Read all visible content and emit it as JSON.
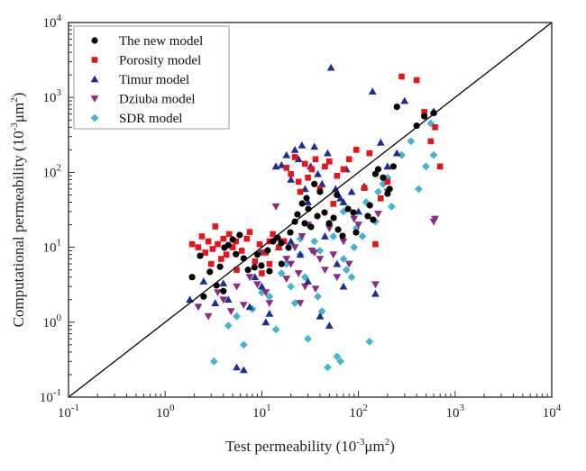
{
  "chart_data": {
    "type": "scatter",
    "title": "",
    "xlabel": "Test permeability (10⁻³μm²)",
    "ylabel": "Computational permeability (10⁻³μm²)",
    "xlabel_parts": {
      "pre": "Test permeability (10",
      "sup1": "-3",
      "mid": "μm",
      "sup2": "2",
      "post": ")"
    },
    "ylabel_parts": {
      "pre": "Computational permeability (10",
      "sup1": "-3",
      "mid": "μm",
      "sup2": "2",
      "post": ")"
    },
    "xscale": "log",
    "yscale": "log",
    "xlim": [
      0.1,
      10000
    ],
    "ylim": [
      0.1,
      10000
    ],
    "x_ticks": [
      {
        "value": 0.1,
        "base": "10",
        "exp": "-1"
      },
      {
        "value": 1,
        "base": "10",
        "exp": "0"
      },
      {
        "value": 10,
        "base": "10",
        "exp": "1"
      },
      {
        "value": 100,
        "base": "10",
        "exp": "2"
      },
      {
        "value": 1000,
        "base": "10",
        "exp": "3"
      },
      {
        "value": 10000,
        "base": "10",
        "exp": "4"
      }
    ],
    "y_ticks": [
      {
        "value": 0.1,
        "base": "10",
        "exp": "-1"
      },
      {
        "value": 1,
        "base": "10",
        "exp": "0"
      },
      {
        "value": 10,
        "base": "10",
        "exp": "1"
      },
      {
        "value": 100,
        "base": "10",
        "exp": "2"
      },
      {
        "value": 1000,
        "base": "10",
        "exp": "3"
      },
      {
        "value": 10000,
        "base": "10",
        "exp": "4"
      }
    ],
    "grid": false,
    "legend_position": "top-left",
    "reference_line": {
      "name": "y = x",
      "color": "#000000"
    },
    "series": [
      {
        "name": "The new model",
        "marker": "circle",
        "color": "#000000",
        "points": [
          [
            1.9,
            4.0
          ],
          [
            2.3,
            7.7
          ],
          [
            2.9,
            4.7
          ],
          [
            3.7,
            5.5
          ],
          [
            4.1,
            9.9
          ],
          [
            4.5,
            10.7
          ],
          [
            5.0,
            12.7
          ],
          [
            5.9,
            14.6
          ],
          [
            5.4,
            8.1
          ],
          [
            6.5,
            7.1
          ],
          [
            7.2,
            5.0
          ],
          [
            8.4,
            5.4
          ],
          [
            9.9,
            5.7
          ],
          [
            11.5,
            9.1
          ],
          [
            13.1,
            12.0
          ],
          [
            14.6,
            13.4
          ],
          [
            15.9,
            11.4
          ],
          [
            18.9,
            9.9
          ],
          [
            19.7,
            15.8
          ],
          [
            23.4,
            27.5
          ],
          [
            26.1,
            38.4
          ],
          [
            29.0,
            45.3
          ],
          [
            30.3,
            32.5
          ],
          [
            27.8,
            20.9
          ],
          [
            32.3,
            18.7
          ],
          [
            37.6,
            26.1
          ],
          [
            44.6,
            29.1
          ],
          [
            49.7,
            20.9
          ],
          [
            55.3,
            24.7
          ],
          [
            61.6,
            17.2
          ],
          [
            68.5,
            14.2
          ],
          [
            78.0,
            32.5
          ],
          [
            88.7,
            29.1
          ],
          [
            94.6,
            15.8
          ],
          [
            125,
            26.1
          ],
          [
            131,
            36.3
          ],
          [
            142,
            23.3
          ],
          [
            160,
            110
          ],
          [
            180,
            85
          ],
          [
            210,
            60
          ],
          [
            250,
            750
          ],
          [
            230,
            120
          ],
          [
            400,
            420
          ],
          [
            480,
            560
          ],
          [
            600,
            620
          ],
          [
            2.5,
            2.2
          ],
          [
            3.4,
            3.1
          ],
          [
            4.0,
            2.6
          ],
          [
            16,
            6
          ],
          [
            22,
            22
          ],
          [
            35,
            70
          ],
          [
            40,
            55
          ],
          [
            60,
            50
          ],
          [
            150,
            95
          ],
          [
            200,
            52
          ],
          [
            9,
            8
          ],
          [
            12,
            4.8
          ]
        ]
      },
      {
        "name": "Porosity model",
        "marker": "square",
        "color": "#e8141c",
        "points": [
          [
            1.9,
            11
          ],
          [
            2.2,
            10
          ],
          [
            2.4,
            14
          ],
          [
            2.6,
            8.5
          ],
          [
            2.8,
            12
          ],
          [
            3.1,
            9.5
          ],
          [
            3.3,
            19
          ],
          [
            3.5,
            11
          ],
          [
            3.8,
            7
          ],
          [
            4.0,
            13
          ],
          [
            4.3,
            8
          ],
          [
            4.6,
            15
          ],
          [
            5.0,
            10
          ],
          [
            5.4,
            12
          ],
          [
            6.2,
            9
          ],
          [
            7.0,
            13
          ],
          [
            7.5,
            16
          ],
          [
            8.5,
            6.5
          ],
          [
            9.5,
            11
          ],
          [
            11,
            8.5
          ],
          [
            12,
            12
          ],
          [
            13,
            15
          ],
          [
            15,
            10
          ],
          [
            17,
            12
          ],
          [
            18,
            115
          ],
          [
            20,
            95
          ],
          [
            22,
            160
          ],
          [
            24,
            75
          ],
          [
            25,
            55
          ],
          [
            28,
            130
          ],
          [
            30,
            85
          ],
          [
            33,
            110
          ],
          [
            36,
            150
          ],
          [
            40,
            60
          ],
          [
            45,
            120
          ],
          [
            50,
            140
          ],
          [
            55,
            38
          ],
          [
            60,
            90
          ],
          [
            70,
            110
          ],
          [
            80,
            150
          ],
          [
            95,
            200
          ],
          [
            115,
            62
          ],
          [
            130,
            180
          ],
          [
            150,
            11
          ],
          [
            170,
            45
          ],
          [
            200,
            75
          ],
          [
            280,
            1900
          ],
          [
            400,
            1700
          ],
          [
            560,
            260
          ],
          [
            700,
            120
          ],
          [
            480,
            640
          ],
          [
            620,
            400
          ],
          [
            10,
            4.5
          ],
          [
            12,
            6
          ],
          [
            3,
            6
          ],
          [
            5.5,
            5
          ]
        ]
      },
      {
        "name": "Timur model",
        "marker": "triangle-up",
        "color": "#1f2f8f",
        "points": [
          [
            1.8,
            2.0
          ],
          [
            2.5,
            3.5
          ],
          [
            3.3,
            1.8
          ],
          [
            4.0,
            3.3
          ],
          [
            4.5,
            2.0
          ],
          [
            5.5,
            0.25
          ],
          [
            6.5,
            0.23
          ],
          [
            7.5,
            1.6
          ],
          [
            8.5,
            4.0
          ],
          [
            10,
            3.0
          ],
          [
            11,
            1.0
          ],
          [
            12,
            1.3
          ],
          [
            14,
            120
          ],
          [
            16,
            125
          ],
          [
            18,
            170
          ],
          [
            20,
            80
          ],
          [
            22,
            200
          ],
          [
            24,
            150
          ],
          [
            26,
            230
          ],
          [
            28,
            60
          ],
          [
            30,
            40
          ],
          [
            32,
            120
          ],
          [
            35,
            220
          ],
          [
            38,
            95
          ],
          [
            42,
            70
          ],
          [
            48,
            180
          ],
          [
            52,
            2500
          ],
          [
            58,
            60
          ],
          [
            65,
            45
          ],
          [
            70,
            40
          ],
          [
            75,
            110
          ],
          [
            85,
            55
          ],
          [
            100,
            30
          ],
          [
            115,
            65
          ],
          [
            140,
            1200
          ],
          [
            150,
            2.4
          ],
          [
            170,
            250
          ],
          [
            200,
            120
          ],
          [
            250,
            180
          ],
          [
            300,
            900
          ],
          [
            600,
            650
          ],
          [
            25,
            8
          ],
          [
            30,
            3.5
          ],
          [
            40,
            1.2
          ],
          [
            50,
            0.9
          ],
          [
            60,
            6
          ],
          [
            70,
            3
          ],
          [
            20,
            12
          ],
          [
            15,
            10
          ],
          [
            45,
            14
          ]
        ]
      },
      {
        "name": "Dziuba model",
        "marker": "triangle-down",
        "color": "#8c2b86",
        "points": [
          [
            2.2,
            1.6
          ],
          [
            2.8,
            1.2
          ],
          [
            3.5,
            2.5
          ],
          [
            4.0,
            2.0
          ],
          [
            4.8,
            1.4
          ],
          [
            5.5,
            3.0
          ],
          [
            6.5,
            1.7
          ],
          [
            7.5,
            4.0
          ],
          [
            9.0,
            3.2
          ],
          [
            10,
            8.5
          ],
          [
            11,
            2.5
          ],
          [
            12,
            1.8
          ],
          [
            14,
            35
          ],
          [
            16,
            12
          ],
          [
            18,
            7
          ],
          [
            20,
            6
          ],
          [
            22,
            10
          ],
          [
            24,
            4.5
          ],
          [
            26,
            14
          ],
          [
            28,
            3.0
          ],
          [
            30,
            20
          ],
          [
            33,
            9
          ],
          [
            36,
            2.8
          ],
          [
            40,
            7
          ],
          [
            45,
            5
          ],
          [
            50,
            18
          ],
          [
            55,
            8
          ],
          [
            60,
            4
          ],
          [
            70,
            12
          ],
          [
            80,
            6
          ],
          [
            90,
            24
          ],
          [
            100,
            20
          ],
          [
            150,
            3.2
          ],
          [
            160,
            28
          ],
          [
            600,
            22
          ],
          [
            620,
            24
          ],
          [
            200,
            55
          ],
          [
            25,
            1.8
          ],
          [
            18,
            3.8
          ],
          [
            35,
            8.5
          ]
        ]
      },
      {
        "name": "SDR model",
        "marker": "diamond",
        "color": "#43b6cf",
        "points": [
          [
            3.2,
            0.3
          ],
          [
            4.5,
            0.9
          ],
          [
            5.5,
            1.2
          ],
          [
            6.5,
            0.5
          ],
          [
            8,
            1.5
          ],
          [
            10,
            2.5
          ],
          [
            12,
            2.2
          ],
          [
            14,
            0.8
          ],
          [
            16,
            4.5
          ],
          [
            18,
            6
          ],
          [
            20,
            3
          ],
          [
            22,
            1.8
          ],
          [
            25,
            8
          ],
          [
            28,
            4
          ],
          [
            30,
            0.6
          ],
          [
            35,
            12
          ],
          [
            38,
            2.2
          ],
          [
            42,
            1.4
          ],
          [
            48,
            0.25
          ],
          [
            50,
            20
          ],
          [
            55,
            14
          ],
          [
            60,
            0.35
          ],
          [
            65,
            0.3
          ],
          [
            70,
            30
          ],
          [
            75,
            5
          ],
          [
            85,
            4
          ],
          [
            95,
            18
          ],
          [
            110,
            14
          ],
          [
            120,
            40
          ],
          [
            130,
            0.55
          ],
          [
            150,
            22
          ],
          [
            160,
            55
          ],
          [
            180,
            70
          ],
          [
            200,
            85
          ],
          [
            220,
            35
          ],
          [
            280,
            170
          ],
          [
            350,
            260
          ],
          [
            420,
            60
          ],
          [
            500,
            120
          ],
          [
            560,
            450
          ],
          [
            600,
            170
          ],
          [
            90,
            10
          ],
          [
            40,
            9
          ],
          [
            25,
            13
          ],
          [
            70,
            7
          ]
        ]
      }
    ]
  }
}
